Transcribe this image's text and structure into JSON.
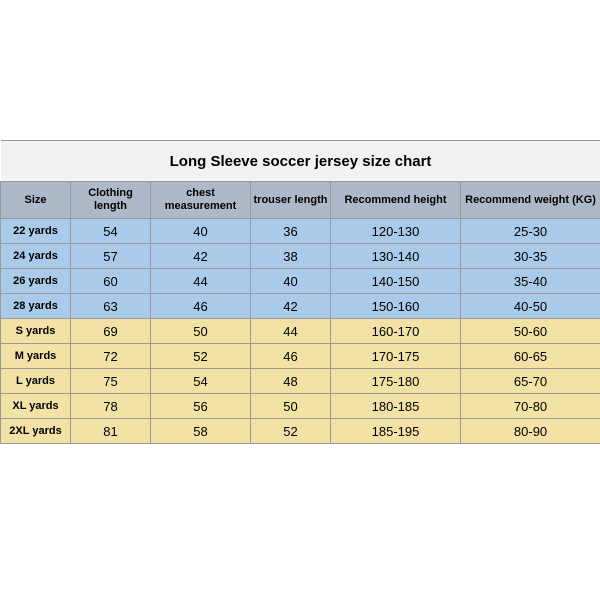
{
  "title": "Long Sleeve soccer jersey size chart",
  "columns": [
    "Size",
    "Clothing length",
    "chest measurement",
    "trouser length",
    "Recommend height",
    "Recommend weight (KG)"
  ],
  "colors": {
    "header": "#adb9c9",
    "group_a": "#a9cbe9",
    "group_b": "#f3e2a5",
    "title_bg": "#f2f2f2",
    "border": "#9a9a9a"
  },
  "rows": [
    {
      "g": "a",
      "cells": [
        "22 yards",
        "54",
        "40",
        "36",
        "120-130",
        "25-30"
      ]
    },
    {
      "g": "a",
      "cells": [
        "24 yards",
        "57",
        "42",
        "38",
        "130-140",
        "30-35"
      ]
    },
    {
      "g": "a",
      "cells": [
        "26 yards",
        "60",
        "44",
        "40",
        "140-150",
        "35-40"
      ]
    },
    {
      "g": "a",
      "cells": [
        "28 yards",
        "63",
        "46",
        "42",
        "150-160",
        "40-50"
      ]
    },
    {
      "g": "b",
      "cells": [
        "S yards",
        "69",
        "50",
        "44",
        "160-170",
        "50-60"
      ]
    },
    {
      "g": "b",
      "cells": [
        "M yards",
        "72",
        "52",
        "46",
        "170-175",
        "60-65"
      ]
    },
    {
      "g": "b",
      "cells": [
        "L yards",
        "75",
        "54",
        "48",
        "175-180",
        "65-70"
      ]
    },
    {
      "g": "b",
      "cells": [
        "XL yards",
        "78",
        "56",
        "50",
        "180-185",
        "70-80"
      ]
    },
    {
      "g": "b",
      "cells": [
        "2XL yards",
        "81",
        "58",
        "52",
        "185-195",
        "80-90"
      ]
    }
  ]
}
